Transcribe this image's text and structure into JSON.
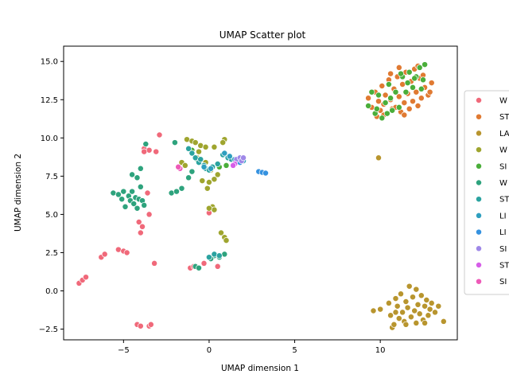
{
  "chart_data": {
    "type": "scatter",
    "title": "UMAP Scatter plot",
    "xlabel": "UMAP dimension 1",
    "ylabel": "UMAP dimension 2",
    "xlim": [
      -8.5,
      14.5
    ],
    "ylim": [
      -3.2,
      16.0
    ],
    "xticks": [
      -5,
      0,
      5,
      10
    ],
    "yticks": [
      -2.5,
      0.0,
      2.5,
      5.0,
      7.5,
      10.0,
      12.5,
      15.0
    ],
    "xtick_labels": [
      "−5",
      "0",
      "5",
      "10"
    ],
    "ytick_labels": [
      "−2.5",
      "0.0",
      "2.5",
      "5.0",
      "7.5",
      "10.0",
      "12.5",
      "15.0"
    ],
    "grid": false,
    "legend_position": "center-right, clipped by figure edge",
    "series": [
      {
        "name": "W",
        "color": "#f0697a",
        "points": [
          [
            -7.6,
            0.5
          ],
          [
            -7.4,
            0.7
          ],
          [
            -7.2,
            0.9
          ],
          [
            -6.3,
            2.2
          ],
          [
            -6.1,
            2.4
          ],
          [
            -5.3,
            2.7
          ],
          [
            -5.0,
            2.6
          ],
          [
            -4.8,
            2.5
          ],
          [
            -4.2,
            -2.2
          ],
          [
            -4.0,
            -2.3
          ],
          [
            -3.5,
            -2.3
          ],
          [
            -3.4,
            -2.2
          ],
          [
            -4.0,
            3.8
          ],
          [
            -3.9,
            4.2
          ],
          [
            -4.1,
            4.5
          ],
          [
            -3.5,
            5.0
          ],
          [
            -3.2,
            1.8
          ],
          [
            -3.8,
            9.3
          ],
          [
            -3.5,
            9.2
          ],
          [
            -3.1,
            9.1
          ],
          [
            -2.9,
            10.2
          ],
          [
            -3.6,
            6.4
          ],
          [
            -1.1,
            1.5
          ],
          [
            -0.9,
            1.6
          ],
          [
            -0.3,
            1.8
          ],
          [
            0.0,
            5.1
          ],
          [
            0.5,
            1.6
          ],
          [
            -3.8,
            9.1
          ]
        ]
      },
      {
        "name": "ST",
        "color": "#e07a32",
        "points": [
          [
            9.3,
            12.6
          ],
          [
            9.5,
            12.0
          ],
          [
            9.7,
            13.0
          ],
          [
            9.9,
            12.4
          ],
          [
            10.0,
            11.8
          ],
          [
            10.1,
            13.4
          ],
          [
            10.2,
            12.2
          ],
          [
            10.3,
            12.8
          ],
          [
            10.4,
            11.6
          ],
          [
            10.5,
            13.8
          ],
          [
            10.6,
            12.5
          ],
          [
            10.7,
            11.9
          ],
          [
            10.8,
            13.2
          ],
          [
            10.9,
            12.0
          ],
          [
            11.0,
            14.0
          ],
          [
            11.1,
            12.7
          ],
          [
            11.2,
            11.7
          ],
          [
            11.3,
            13.5
          ],
          [
            11.4,
            12.3
          ],
          [
            11.5,
            14.3
          ],
          [
            11.6,
            12.9
          ],
          [
            11.7,
            11.9
          ],
          [
            11.8,
            13.7
          ],
          [
            11.9,
            12.4
          ],
          [
            12.0,
            14.5
          ],
          [
            12.1,
            13.0
          ],
          [
            12.2,
            12.1
          ],
          [
            12.3,
            13.9
          ],
          [
            12.4,
            12.6
          ],
          [
            12.5,
            14.1
          ],
          [
            12.6,
            13.3
          ],
          [
            12.8,
            12.8
          ],
          [
            13.0,
            13.6
          ],
          [
            10.2,
            11.5
          ],
          [
            11.1,
            14.6
          ],
          [
            12.9,
            13.0
          ],
          [
            9.8,
            11.4
          ],
          [
            10.6,
            14.2
          ],
          [
            11.4,
            11.5
          ],
          [
            12.2,
            14.7
          ]
        ]
      },
      {
        "name": "LA",
        "color": "#b8952e",
        "points": [
          [
            9.6,
            -1.3
          ],
          [
            10.0,
            -1.2
          ],
          [
            10.5,
            -0.8
          ],
          [
            10.6,
            -1.6
          ],
          [
            10.7,
            -2.4
          ],
          [
            10.8,
            -2.2
          ],
          [
            10.9,
            -0.5
          ],
          [
            11.0,
            -1.0
          ],
          [
            11.1,
            -1.8
          ],
          [
            11.2,
            -0.2
          ],
          [
            11.3,
            -1.4
          ],
          [
            11.4,
            -2.0
          ],
          [
            11.5,
            -0.7
          ],
          [
            11.6,
            -1.1
          ],
          [
            11.7,
            0.3
          ],
          [
            11.8,
            -1.7
          ],
          [
            11.9,
            -0.4
          ],
          [
            12.0,
            -1.3
          ],
          [
            12.1,
            -2.1
          ],
          [
            12.2,
            -0.9
          ],
          [
            12.3,
            -1.5
          ],
          [
            12.4,
            -0.3
          ],
          [
            12.5,
            -1.9
          ],
          [
            12.6,
            -1.0
          ],
          [
            12.7,
            -0.6
          ],
          [
            12.8,
            -1.6
          ],
          [
            12.9,
            -1.2
          ],
          [
            13.0,
            -0.8
          ],
          [
            13.2,
            -1.4
          ],
          [
            13.4,
            -1.0
          ],
          [
            13.7,
            -2.0
          ],
          [
            9.9,
            8.7
          ],
          [
            12.1,
            0.1
          ],
          [
            11.5,
            -2.2
          ],
          [
            10.9,
            -1.4
          ],
          [
            12.6,
            -2.1
          ]
        ]
      },
      {
        "name": "W",
        "color": "#9fa52f",
        "points": [
          [
            -1.3,
            9.9
          ],
          [
            -1.0,
            9.8
          ],
          [
            -0.8,
            9.7
          ],
          [
            -0.5,
            9.5
          ],
          [
            -0.2,
            9.4
          ],
          [
            0.3,
            9.4
          ],
          [
            0.9,
            9.9
          ],
          [
            0.8,
            9.7
          ],
          [
            -1.6,
            8.4
          ],
          [
            -1.4,
            8.2
          ],
          [
            -0.7,
            8.7
          ],
          [
            -0.2,
            8.4
          ],
          [
            0.1,
            7.9
          ],
          [
            0.3,
            7.3
          ],
          [
            0.0,
            7.1
          ],
          [
            -0.4,
            7.2
          ],
          [
            -0.1,
            6.7
          ],
          [
            0.6,
            8.1
          ],
          [
            1.0,
            8.2
          ],
          [
            0.2,
            5.5
          ],
          [
            0.3,
            5.3
          ],
          [
            0.0,
            5.4
          ],
          [
            0.7,
            3.8
          ],
          [
            0.9,
            3.5
          ],
          [
            1.0,
            3.3
          ],
          [
            -0.6,
            9.1
          ],
          [
            0.5,
            7.6
          ]
        ]
      },
      {
        "name": "SI",
        "color": "#4aae3a",
        "points": [
          [
            9.3,
            12.1
          ],
          [
            9.5,
            13.0
          ],
          [
            9.7,
            11.6
          ],
          [
            9.9,
            12.8
          ],
          [
            10.1,
            11.3
          ],
          [
            10.3,
            12.3
          ],
          [
            10.5,
            13.5
          ],
          [
            10.7,
            11.8
          ],
          [
            10.9,
            13.0
          ],
          [
            11.1,
            12.0
          ],
          [
            11.3,
            14.0
          ],
          [
            11.5,
            13.0
          ],
          [
            11.7,
            14.3
          ],
          [
            11.9,
            13.3
          ],
          [
            12.1,
            14.0
          ],
          [
            12.3,
            14.6
          ],
          [
            12.5,
            13.8
          ],
          [
            12.6,
            14.8
          ],
          [
            12.0,
            13.9
          ],
          [
            11.6,
            13.6
          ],
          [
            10.4,
            11.6
          ],
          [
            9.8,
            11.9
          ],
          [
            10.6,
            12.6
          ],
          [
            11.2,
            14.2
          ],
          [
            12.4,
            13.2
          ],
          [
            -1.0,
            9.2
          ],
          [
            -0.7,
            8.6
          ],
          [
            0.1,
            8.0
          ],
          [
            0.6,
            8.1
          ],
          [
            1.0,
            8.2
          ]
        ]
      },
      {
        "name": "W",
        "color": "#2ea37d",
        "points": [
          [
            -5.6,
            6.4
          ],
          [
            -5.3,
            6.3
          ],
          [
            -5.1,
            6.0
          ],
          [
            -5.0,
            6.5
          ],
          [
            -4.9,
            5.5
          ],
          [
            -4.7,
            6.2
          ],
          [
            -4.6,
            5.9
          ],
          [
            -4.5,
            6.5
          ],
          [
            -4.4,
            5.7
          ],
          [
            -4.3,
            6.1
          ],
          [
            -4.2,
            5.4
          ],
          [
            -4.1,
            6.0
          ],
          [
            -4.0,
            6.8
          ],
          [
            -3.9,
            5.9
          ],
          [
            -3.8,
            5.6
          ],
          [
            -4.5,
            7.6
          ],
          [
            -4.2,
            7.4
          ],
          [
            -4.0,
            8.0
          ],
          [
            -3.7,
            9.6
          ],
          [
            -2.2,
            6.4
          ],
          [
            -1.9,
            6.5
          ],
          [
            -1.6,
            6.7
          ],
          [
            -1.2,
            7.4
          ],
          [
            -1.0,
            7.8
          ],
          [
            -0.8,
            1.6
          ],
          [
            -0.6,
            1.5
          ],
          [
            -2.0,
            9.7
          ],
          [
            0.3,
            2.3
          ],
          [
            0.6,
            2.2
          ],
          [
            0.9,
            2.4
          ],
          [
            0.1,
            2.1
          ]
        ]
      },
      {
        "name": "ST",
        "color": "#2ba3a0",
        "points": [
          [
            -1.2,
            9.3
          ],
          [
            -1.0,
            9.0
          ],
          [
            -0.8,
            8.7
          ],
          [
            -0.6,
            8.4
          ],
          [
            -0.3,
            8.2
          ],
          [
            -0.2,
            8.0
          ],
          [
            0.0,
            7.9
          ],
          [
            0.2,
            8.1
          ],
          [
            0.5,
            8.3
          ],
          [
            0.8,
            8.9
          ],
          [
            1.1,
            8.7
          ],
          [
            1.3,
            8.6
          ],
          [
            0.0,
            2.2
          ],
          [
            0.3,
            2.4
          ],
          [
            0.6,
            2.3
          ],
          [
            -0.5,
            8.6
          ]
        ]
      },
      {
        "name": "LI",
        "color": "#2e9fbf",
        "points": [
          [
            0.9,
            9.0
          ],
          [
            1.2,
            8.8
          ],
          [
            1.5,
            8.6
          ],
          [
            1.8,
            8.4
          ],
          [
            2.0,
            8.5
          ],
          [
            -0.3,
            8.1
          ],
          [
            0.1,
            8.0
          ]
        ]
      },
      {
        "name": "LI",
        "color": "#3592e0",
        "points": [
          [
            2.9,
            7.8
          ],
          [
            3.1,
            7.75
          ],
          [
            3.3,
            7.7
          ],
          [
            1.8,
            8.4
          ]
        ]
      },
      {
        "name": "SI",
        "color": "#9f88e8",
        "points": [
          [
            1.6,
            8.6
          ],
          [
            1.8,
            8.7
          ],
          [
            1.9,
            8.5
          ],
          [
            2.0,
            8.7
          ]
        ]
      },
      {
        "name": "ST",
        "color": "#d65ee8",
        "points": [
          [
            1.5,
            8.3
          ],
          [
            1.4,
            8.2
          ]
        ]
      },
      {
        "name": "SI",
        "color": "#ee5ab8",
        "points": [
          [
            -1.7,
            8.0
          ],
          [
            -1.8,
            8.1
          ]
        ]
      }
    ]
  }
}
